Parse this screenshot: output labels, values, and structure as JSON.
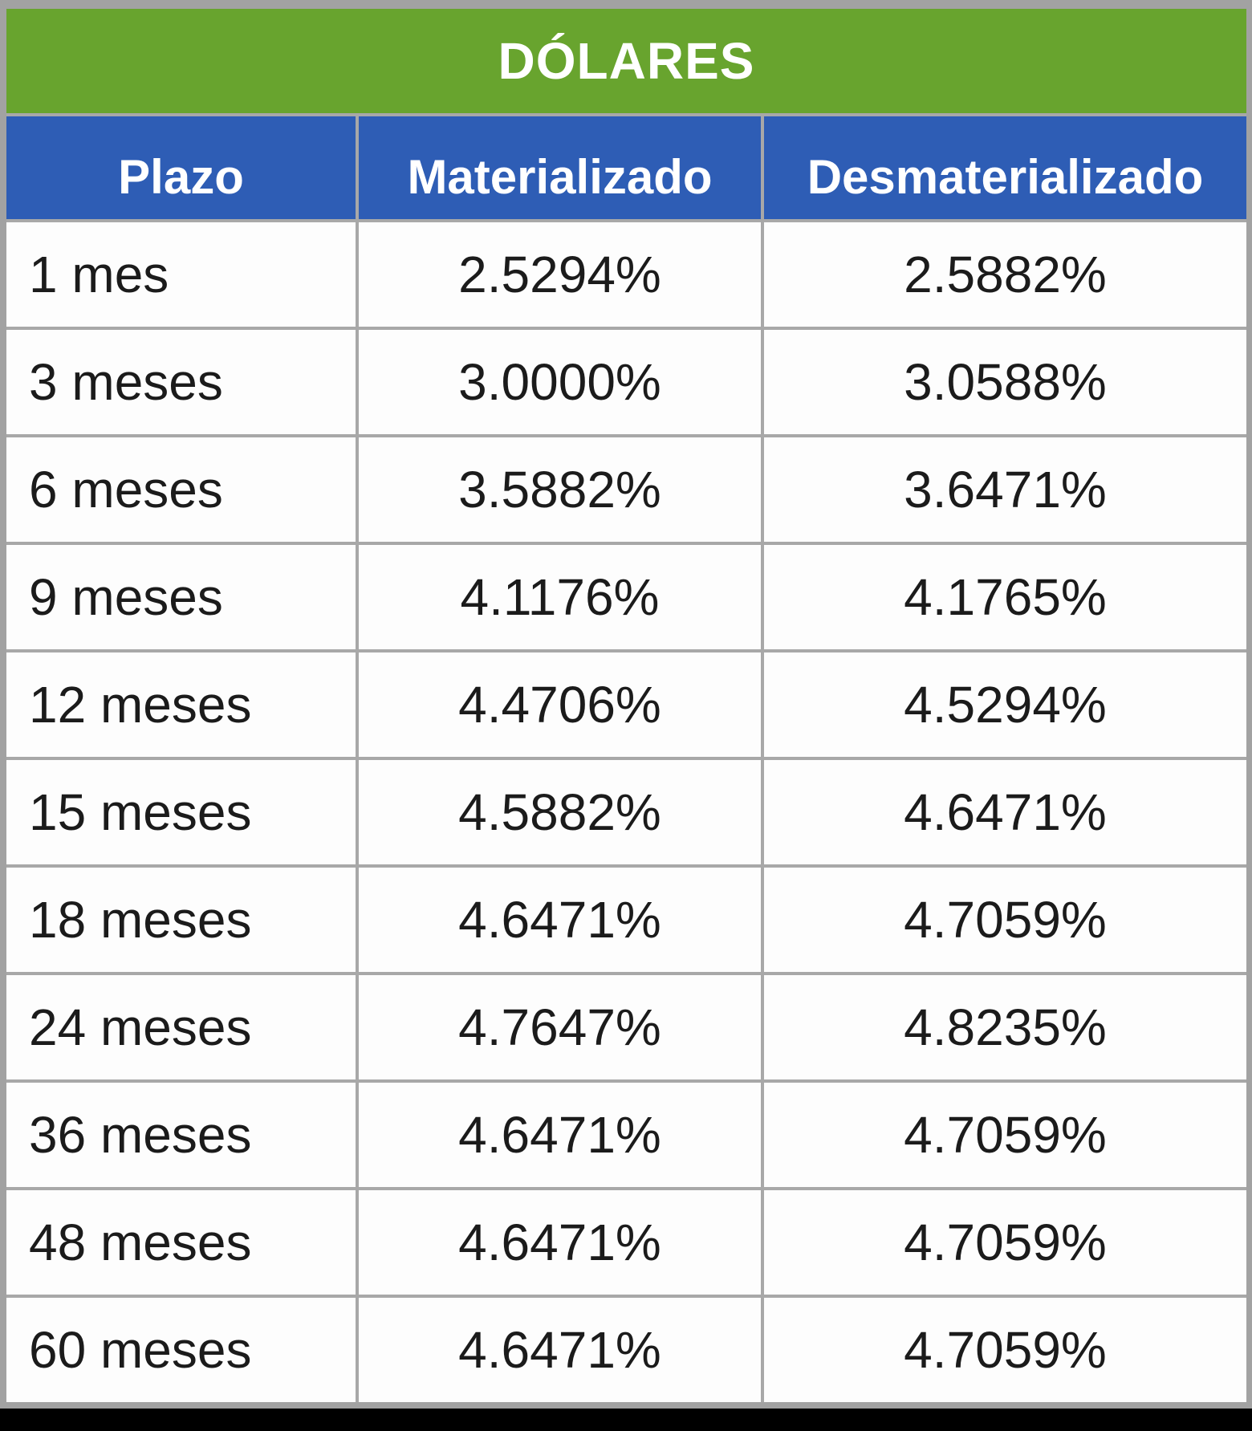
{
  "chart_data": {
    "type": "table",
    "title": "DÓLARES",
    "columns": [
      "Plazo",
      "Materializado",
      "Desmaterializado"
    ],
    "rows": [
      [
        "1 mes",
        "2.5294%",
        "2.5882%"
      ],
      [
        "3 meses",
        "3.0000%",
        "3.0588%"
      ],
      [
        "6 meses",
        "3.5882%",
        "3.6471%"
      ],
      [
        "9 meses",
        "4.1176%",
        "4.1765%"
      ],
      [
        "12 meses",
        "4.4706%",
        "4.5294%"
      ],
      [
        "15 meses",
        "4.5882%",
        "4.6471%"
      ],
      [
        "18 meses",
        "4.6471%",
        "4.7059%"
      ],
      [
        "24 meses",
        "4.7647%",
        "4.8235%"
      ],
      [
        "36 meses",
        "4.6471%",
        "4.7059%"
      ],
      [
        "48 meses",
        "4.6471%",
        "4.7059%"
      ],
      [
        "60 meses",
        "4.6471%",
        "4.7059%"
      ]
    ],
    "layout_hints": {
      "title_row_color": "#68a42e",
      "header_row_color": "#2e5db5",
      "header_text_color": "#ffffff",
      "cell_background": "#fdfdfd",
      "cell_text_color": "#1b1b1b",
      "gridline_color": "#a8a8a8",
      "page_background": "#a2a2a2",
      "bottom_bar_color": "#000000",
      "plazo_alignment": "left",
      "value_alignment": "center"
    }
  }
}
